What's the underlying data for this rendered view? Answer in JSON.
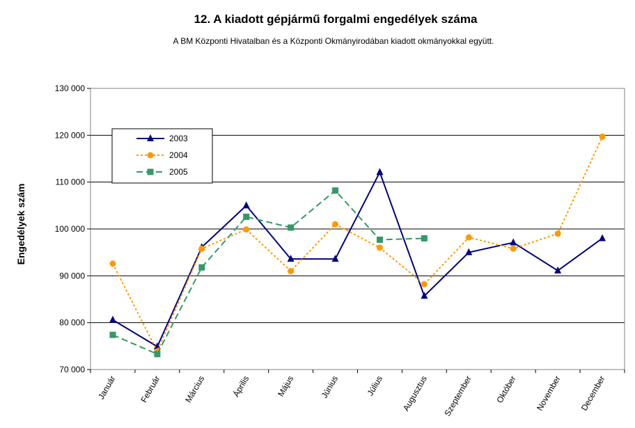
{
  "chart_data": {
    "type": "line",
    "title": "12. A  kiadott gépjármű forgalmi engedélyek száma",
    "subtitle": "A BM Központi Hivatalban és a Központi Okmányirodában kiadott okmányokkal együtt.",
    "xlabel": "",
    "ylabel": "Engedélyek szám",
    "ylim": [
      70000,
      130000
    ],
    "yticks": [
      70000,
      80000,
      90000,
      100000,
      110000,
      120000,
      130000
    ],
    "ytick_labels": [
      "70 000",
      "80 000",
      "90 000",
      "100 000",
      "110 000",
      "120 000",
      "130 000"
    ],
    "grid": "horizontal",
    "legend_position": "top-left",
    "categories": [
      "Január",
      "Február",
      "Március",
      "Április",
      "Május",
      "Június",
      "Július",
      "Augusztus",
      "Szeptember",
      "Október",
      "November",
      "December"
    ],
    "series": [
      {
        "name": "2003",
        "color": "#000080",
        "line_style": "solid",
        "marker": "triangle",
        "values": [
          80600,
          74900,
          96100,
          105000,
          93600,
          93600,
          112100,
          85700,
          95000,
          97100,
          91100,
          98000
        ]
      },
      {
        "name": "2004",
        "color": "#FF9900",
        "line_style": "dotted",
        "marker": "circle",
        "values": [
          92600,
          73900,
          95800,
          99900,
          91000,
          101000,
          96000,
          88200,
          98200,
          95800,
          99000,
          119700
        ]
      },
      {
        "name": "2005",
        "color": "#339966",
        "line_style": "dashed",
        "marker": "square",
        "values": [
          77400,
          73300,
          91800,
          102600,
          100300,
          108200,
          97700,
          98000,
          null,
          null,
          null,
          null
        ]
      }
    ]
  }
}
